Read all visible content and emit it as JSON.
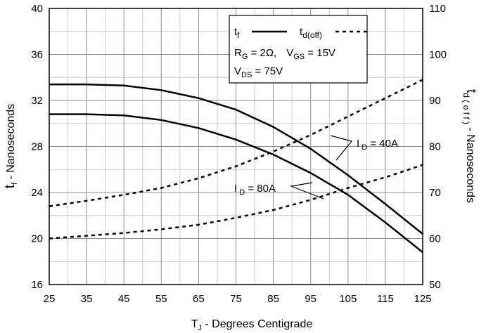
{
  "chart_data": {
    "type": "line",
    "x_label": {
      "main": "T",
      "sub": "J",
      "rest": " - Degrees Centigrade"
    },
    "y_left_label": {
      "main": "t",
      "sub": "f",
      "rest": " - Nanoseconds"
    },
    "y_right_label": {
      "main": "t",
      "sub": "d ( o f f )",
      "rest": " - Nanoseconds"
    },
    "x_ticks": [
      "25",
      "35",
      "45",
      "55",
      "65",
      "75",
      "85",
      "95",
      "105",
      "115",
      "125"
    ],
    "y_left_ticks": [
      "16",
      "20",
      "24",
      "28",
      "32",
      "36",
      "40"
    ],
    "y_right_ticks": [
      "50",
      "60",
      "70",
      "80",
      "90",
      "100",
      "110"
    ],
    "xlim": [
      25,
      125
    ],
    "ylim_left": [
      16,
      40
    ],
    "ylim_right": [
      50,
      110
    ],
    "grid": true,
    "legend": {
      "tf": {
        "main": "t",
        "sub": "f"
      },
      "td": {
        "main": "t",
        "sub": "d(off)"
      },
      "line2": {
        "rg_main": "R",
        "rg_sub": "G",
        "rg_val": " = 2Ω,",
        "vgs_main": "V",
        "vgs_sub": "GS",
        "vgs_val": " = 15V"
      },
      "line3": {
        "main": "V",
        "sub": "DS",
        "val": " = 75V"
      }
    },
    "annotations": {
      "id40": {
        "main": "I",
        "sub": " D",
        "val": " = 40A"
      },
      "id80": {
        "main": "I",
        "sub": " D",
        "val": " = 80A"
      }
    },
    "series": [
      {
        "axis": "left",
        "style": "solid",
        "x": [
          25,
          35,
          45,
          55,
          65,
          75,
          85,
          95,
          105,
          115,
          125
        ],
        "y": [
          33.4,
          33.4,
          33.3,
          32.9,
          32.2,
          31.2,
          29.7,
          27.8,
          25.5,
          23.0,
          20.4
        ]
      },
      {
        "axis": "left",
        "style": "solid",
        "x": [
          25,
          35,
          45,
          55,
          65,
          75,
          85,
          95,
          105,
          115,
          125
        ],
        "y": [
          30.8,
          30.8,
          30.7,
          30.3,
          29.6,
          28.6,
          27.3,
          25.7,
          23.8,
          21.4,
          18.8
        ]
      },
      {
        "axis": "right",
        "style": "dashed",
        "x": [
          25,
          35,
          45,
          55,
          65,
          75,
          85,
          95,
          105,
          115,
          125
        ],
        "y": [
          67.0,
          68.2,
          69.5,
          71.0,
          73.1,
          75.7,
          78.9,
          82.5,
          86.5,
          90.5,
          94.5
        ]
      },
      {
        "axis": "right",
        "style": "dashed",
        "x": [
          25,
          35,
          45,
          55,
          65,
          75,
          85,
          95,
          105,
          115,
          125
        ],
        "y": [
          60.0,
          60.6,
          61.2,
          62.0,
          63.0,
          64.5,
          66.2,
          68.4,
          71.0,
          73.3,
          76.0
        ]
      }
    ]
  }
}
